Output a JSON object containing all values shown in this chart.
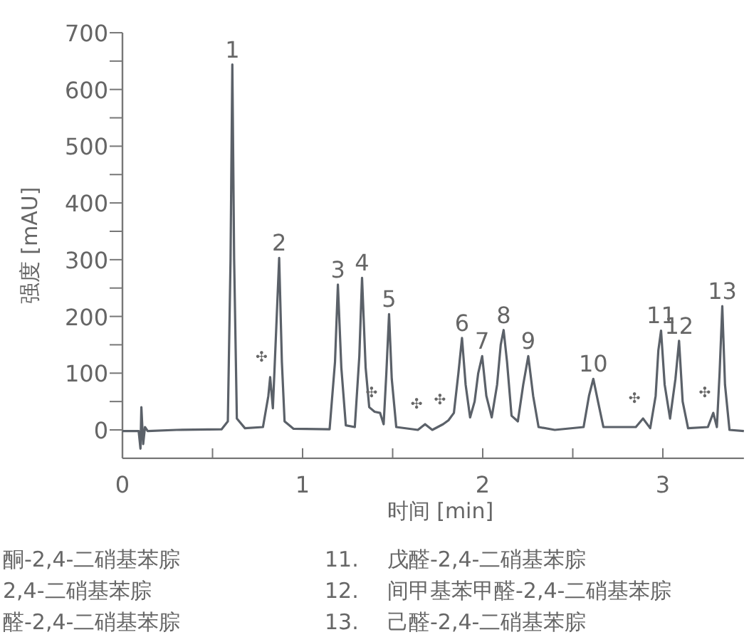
{
  "chart_data": {
    "type": "line",
    "xlabel": "时间 [min]",
    "ylabel": "强度 [mAU]",
    "xlim": [
      0,
      3.45
    ],
    "ylim": [
      -50,
      700
    ],
    "xticks": [
      0,
      {
        "value": 0.5,
        "label": null
      },
      1,
      {
        "value": 1.5,
        "label": null
      },
      2,
      {
        "value": 2.5,
        "label": null
      },
      3
    ],
    "yticks": [
      0,
      {
        "value": 50,
        "label": null
      },
      100,
      {
        "value": 150,
        "label": null
      },
      200,
      {
        "value": 250,
        "label": null
      },
      300,
      {
        "value": 350,
        "label": null
      },
      400,
      {
        "value": 450,
        "label": null
      },
      500,
      {
        "value": 550,
        "label": null
      },
      600,
      {
        "value": 650,
        "label": null
      },
      700
    ],
    "grid": false,
    "marker": "none",
    "line_style": "solid",
    "series": [
      {
        "color": "#5b6169",
        "x": [
          0,
          0.09,
          0.1,
          0.105,
          0.115,
          0.125,
          0.14,
          0.3,
          0.55,
          0.585,
          0.6,
          0.61,
          0.62,
          0.635,
          0.68,
          0.78,
          0.81,
          0.82,
          0.835,
          0.85,
          0.87,
          0.885,
          0.9,
          0.95,
          1.15,
          1.18,
          1.196,
          1.215,
          1.24,
          1.29,
          1.315,
          1.33,
          1.35,
          1.37,
          1.4,
          1.43,
          1.45,
          1.465,
          1.48,
          1.495,
          1.52,
          1.64,
          1.68,
          1.72,
          1.78,
          1.81,
          1.84,
          1.865,
          1.885,
          1.905,
          1.93,
          1.955,
          1.975,
          1.997,
          2.02,
          2.05,
          2.08,
          2.1,
          2.116,
          2.135,
          2.16,
          2.195,
          2.225,
          2.253,
          2.28,
          2.31,
          2.4,
          2.56,
          2.59,
          2.614,
          2.64,
          2.67,
          2.85,
          2.89,
          2.93,
          2.96,
          2.975,
          2.99,
          3.01,
          3.04,
          3.07,
          3.09,
          3.11,
          3.14,
          3.25,
          3.28,
          3.3,
          3.315,
          3.33,
          3.345,
          3.37,
          3.45
        ],
        "values": [
          -2,
          -2,
          -33,
          40,
          -25,
          5,
          -2,
          0,
          1,
          15,
          300,
          644,
          300,
          20,
          3,
          5,
          60,
          93,
          38,
          150,
          303,
          120,
          15,
          2,
          1,
          120,
          256,
          110,
          8,
          5,
          130,
          268,
          110,
          40,
          32,
          30,
          10,
          100,
          204,
          90,
          5,
          0,
          10,
          0,
          10,
          17,
          30,
          100,
          162,
          80,
          22,
          50,
          100,
          130,
          60,
          22,
          80,
          150,
          176,
          120,
          25,
          15,
          80,
          130,
          60,
          5,
          0,
          5,
          60,
          90,
          50,
          5,
          5,
          20,
          3,
          60,
          140,
          175,
          80,
          20,
          90,
          157,
          50,
          3,
          5,
          30,
          5,
          100,
          218,
          80,
          0,
          -2
        ]
      }
    ],
    "annotations": [
      {
        "text": "1",
        "x": 0.61,
        "y": 644
      },
      {
        "text": "2",
        "x": 0.87,
        "y": 303
      },
      {
        "text": "3",
        "x": 1.196,
        "y": 256
      },
      {
        "text": "4",
        "x": 1.33,
        "y": 268
      },
      {
        "text": "5",
        "x": 1.48,
        "y": 204
      },
      {
        "text": "6",
        "x": 1.885,
        "y": 162
      },
      {
        "text": "7",
        "x": 1.997,
        "y": 130
      },
      {
        "text": "8",
        "x": 2.116,
        "y": 176
      },
      {
        "text": "9",
        "x": 2.253,
        "y": 130
      },
      {
        "text": "10",
        "x": 2.614,
        "y": 90
      },
      {
        "text": "11",
        "x": 2.99,
        "y": 175
      },
      {
        "text": "12",
        "x": 3.09,
        "y": 157
      },
      {
        "text": "13",
        "x": 3.33,
        "y": 218
      },
      {
        "text": "✣",
        "x": 0.82,
        "y": 93
      },
      {
        "text": "✣",
        "x": 1.43,
        "y": 30
      },
      {
        "text": "✣",
        "x": 1.68,
        "y": 10
      },
      {
        "text": "✣",
        "x": 1.81,
        "y": 17
      },
      {
        "text": "✣",
        "x": 2.89,
        "y": 20
      },
      {
        "text": "✣",
        "x": 3.28,
        "y": 30
      },
      "酮-2,4-二硝基苯腙",
      "2,4-二硝基苯腙",
      "醛-2,4-二硝基苯腙",
      "11.",
      "戊醛-2,4-二硝基苯腙",
      "12.",
      "间甲基苯甲醛-2,4-二硝基苯腙",
      "13.",
      "己醛-2,4-二硝基苯腙"
    ]
  }
}
